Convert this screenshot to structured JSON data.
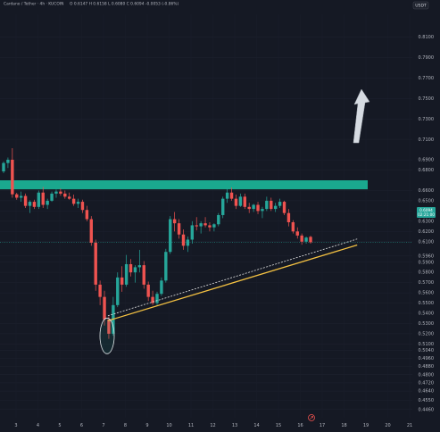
{
  "legend": {
    "title": "Cardano / Tether · 4h · KUCOIN",
    "ohlc": "O 0.6147  H 0.6158  L 0.6080  C 0.6094  -0.0053 (-0.86%)"
  },
  "currency_label": "USDT",
  "last_price": {
    "value": "0.6094",
    "countdown": "02:21:00"
  },
  "colors": {
    "background": "#151924",
    "up": "#26a69a",
    "down": "#ef5350",
    "zone": "#1aa88e",
    "trendline": "#f5c242",
    "arrow": "#d6dbe2",
    "text": "#b2b5be"
  },
  "chart_data": {
    "type": "candlestick",
    "title": "Cardano / Tether · 4h · KUCOIN",
    "timeframe": "4h",
    "x_ticks": [
      "3",
      "4",
      "5",
      "6",
      "7",
      "8",
      "9",
      "10",
      "11",
      "12",
      "13",
      "14",
      "15",
      "16",
      "17",
      "18",
      "19",
      "20",
      "21"
    ],
    "ylim": [
      0.4379,
      0.8323
    ],
    "y_ticks": [
      "0.8100",
      "0.7900",
      "0.7700",
      "0.7500",
      "0.7300",
      "0.7100",
      "0.6900",
      "0.6800",
      "0.6600",
      "0.6500",
      "0.6400",
      "0.6300",
      "0.6200",
      "0.6100",
      "0.5960",
      "0.5900",
      "0.5800",
      "0.5700",
      "0.5600",
      "0.5500",
      "0.5400",
      "0.5300",
      "0.5200",
      "0.5100",
      "0.5040",
      "0.4960",
      "0.4880",
      "0.4800",
      "0.4720",
      "0.4640",
      "0.4550",
      "0.4460"
    ],
    "annotations": {
      "resistance_zone": [
        0.6612,
        0.67
      ],
      "rising_trendline": {
        "from": [
          "Mar 7",
          0.5327
        ],
        "to": [
          "Mar 18.5",
          0.6067
        ]
      },
      "parallel_dashed_line": {
        "from": [
          "Mar 7",
          0.5376
        ],
        "to": [
          "Mar 18.5",
          0.6126
        ]
      },
      "bottom_ellipse_around_low": 0.5205,
      "projection_arrow": "up"
    },
    "candles": [
      [
        0.6787,
        0.6884,
        0.677,
        0.6869
      ],
      [
        0.6869,
        0.6923,
        0.682,
        0.6901
      ],
      [
        0.6901,
        0.7014,
        0.653,
        0.6563
      ],
      [
        0.6563,
        0.6578,
        0.651,
        0.653
      ],
      [
        0.653,
        0.659,
        0.649,
        0.6547
      ],
      [
        0.6547,
        0.657,
        0.643,
        0.645
      ],
      [
        0.645,
        0.6505,
        0.638,
        0.649
      ],
      [
        0.649,
        0.651,
        0.642,
        0.644
      ],
      [
        0.644,
        0.66,
        0.642,
        0.658
      ],
      [
        0.658,
        0.6635,
        0.643,
        0.646
      ],
      [
        0.646,
        0.652,
        0.642,
        0.65
      ],
      [
        0.65,
        0.659,
        0.649,
        0.657
      ],
      [
        0.657,
        0.661,
        0.653,
        0.659
      ],
      [
        0.659,
        0.662,
        0.655,
        0.657
      ],
      [
        0.657,
        0.66,
        0.652,
        0.654
      ],
      [
        0.654,
        0.658,
        0.651,
        0.652
      ],
      [
        0.652,
        0.656,
        0.645,
        0.647
      ],
      [
        0.647,
        0.652,
        0.643,
        0.649
      ],
      [
        0.649,
        0.651,
        0.638,
        0.641
      ],
      [
        0.641,
        0.645,
        0.63,
        0.632
      ],
      [
        0.632,
        0.635,
        0.606,
        0.609
      ],
      [
        0.609,
        0.612,
        0.562,
        0.568
      ],
      [
        0.568,
        0.572,
        0.548,
        0.556
      ],
      [
        0.556,
        0.562,
        0.528,
        0.534
      ],
      [
        0.534,
        0.537,
        0.515,
        0.52
      ],
      [
        0.52,
        0.556,
        0.518,
        0.548
      ],
      [
        0.548,
        0.58,
        0.546,
        0.575
      ],
      [
        0.575,
        0.586,
        0.561,
        0.568
      ],
      [
        0.568,
        0.597,
        0.566,
        0.588
      ],
      [
        0.588,
        0.593,
        0.576,
        0.58
      ],
      [
        0.58,
        0.587,
        0.57,
        0.585
      ],
      [
        0.585,
        0.602,
        0.58,
        0.587
      ],
      [
        0.587,
        0.591,
        0.564,
        0.568
      ],
      [
        0.568,
        0.571,
        0.552,
        0.556
      ],
      [
        0.556,
        0.562,
        0.548,
        0.55
      ],
      [
        0.55,
        0.561,
        0.548,
        0.559
      ],
      [
        0.559,
        0.575,
        0.557,
        0.572
      ],
      [
        0.572,
        0.603,
        0.57,
        0.6
      ],
      [
        0.6,
        0.635,
        0.598,
        0.632
      ],
      [
        0.632,
        0.639,
        0.62,
        0.628
      ],
      [
        0.628,
        0.632,
        0.613,
        0.617
      ],
      [
        0.617,
        0.622,
        0.602,
        0.606
      ],
      [
        0.606,
        0.615,
        0.6,
        0.612
      ],
      [
        0.612,
        0.63,
        0.608,
        0.626
      ],
      [
        0.626,
        0.634,
        0.621,
        0.625
      ],
      [
        0.625,
        0.63,
        0.618,
        0.628
      ],
      [
        0.628,
        0.634,
        0.624,
        0.626
      ],
      [
        0.626,
        0.629,
        0.62,
        0.624
      ],
      [
        0.624,
        0.628,
        0.62,
        0.627
      ],
      [
        0.627,
        0.638,
        0.625,
        0.636
      ],
      [
        0.636,
        0.654,
        0.633,
        0.652
      ],
      [
        0.652,
        0.662,
        0.648,
        0.658
      ],
      [
        0.658,
        0.663,
        0.65,
        0.652
      ],
      [
        0.652,
        0.656,
        0.642,
        0.645
      ],
      [
        0.645,
        0.657,
        0.644,
        0.654
      ],
      [
        0.654,
        0.657,
        0.642,
        0.644
      ],
      [
        0.644,
        0.648,
        0.638,
        0.642
      ],
      [
        0.642,
        0.647,
        0.639,
        0.646
      ],
      [
        0.646,
        0.649,
        0.637,
        0.64
      ],
      [
        0.64,
        0.644,
        0.633,
        0.642
      ],
      [
        0.642,
        0.654,
        0.64,
        0.65
      ],
      [
        0.65,
        0.653,
        0.64,
        0.642
      ],
      [
        0.642,
        0.648,
        0.639,
        0.645
      ],
      [
        0.645,
        0.652,
        0.643,
        0.649
      ],
      [
        0.649,
        0.65,
        0.636,
        0.638
      ],
      [
        0.638,
        0.642,
        0.625,
        0.629
      ],
      [
        0.629,
        0.631,
        0.618,
        0.62
      ],
      [
        0.62,
        0.624,
        0.613,
        0.616
      ],
      [
        0.616,
        0.618,
        0.607,
        0.61
      ],
      [
        0.61,
        0.615,
        0.608,
        0.614
      ],
      [
        0.6147,
        0.6158,
        0.608,
        0.6094
      ]
    ]
  }
}
